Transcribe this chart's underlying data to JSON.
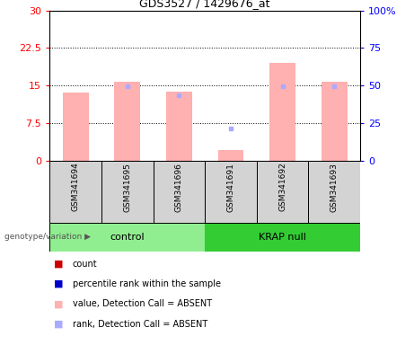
{
  "title": "GDS3527 / 1429676_at",
  "samples": [
    "GSM341694",
    "GSM341695",
    "GSM341696",
    "GSM341691",
    "GSM341692",
    "GSM341693"
  ],
  "group_labels": [
    "control",
    "KRAP null"
  ],
  "group_colors": [
    "#90ee90",
    "#33cc33"
  ],
  "bar_color_absent": "#ffb0b0",
  "dot_color_absent": "#aaaaff",
  "bar_color_present": "#cc0000",
  "dot_color_present": "#0000cc",
  "pink_bar_heights": [
    13.5,
    15.8,
    13.8,
    2.0,
    19.5,
    15.8
  ],
  "blue_dot_heights": [
    null,
    14.8,
    13.0,
    6.3,
    14.8,
    14.8
  ],
  "detection_absent": [
    true,
    true,
    true,
    true,
    true,
    true
  ],
  "ylim_left": [
    0,
    30
  ],
  "ylim_right": [
    0,
    100
  ],
  "yticks_left": [
    0,
    7.5,
    15,
    22.5,
    30
  ],
  "yticks_right": [
    0,
    25,
    50,
    75,
    100
  ],
  "ytick_labels_left": [
    "0",
    "7.5",
    "15",
    "22.5",
    "30"
  ],
  "ytick_labels_right": [
    "0",
    "25",
    "50",
    "75",
    "100%"
  ],
  "hlines": [
    7.5,
    15,
    22.5
  ],
  "background_color": "#ffffff",
  "bar_width": 0.5,
  "genotype_label": "genotype/variation",
  "legend_items": [
    {
      "color": "#cc0000",
      "label": "count"
    },
    {
      "color": "#0000cc",
      "label": "percentile rank within the sample"
    },
    {
      "color": "#ffb0b0",
      "label": "value, Detection Call = ABSENT"
    },
    {
      "color": "#aaaaff",
      "label": "rank, Detection Call = ABSENT"
    }
  ]
}
